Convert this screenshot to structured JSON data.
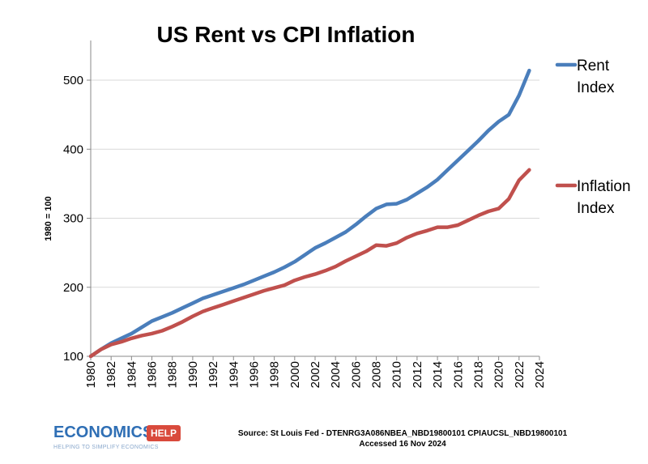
{
  "chart_data": {
    "type": "line",
    "title": "US Rent vs CPI Inflation",
    "ylabel": "1980 = 100",
    "xlabel": "",
    "xlim": [
      1980,
      2024
    ],
    "ylim": [
      100,
      550
    ],
    "yticks": [
      100,
      200,
      300,
      400,
      500
    ],
    "xticks": [
      "1980",
      "1982",
      "1984",
      "1986",
      "1988",
      "1990",
      "1992",
      "1994",
      "1996",
      "1998",
      "2000",
      "2002",
      "2004",
      "2006",
      "2008",
      "2010",
      "2012",
      "2014",
      "2016",
      "2018",
      "2020",
      "2022",
      "2024"
    ],
    "grid": true,
    "legend_position": "right",
    "series": [
      {
        "name": "Rent Index",
        "legend_lines": [
          "Rent",
          "Index"
        ],
        "color": "#4a7ebb",
        "x": [
          1980,
          1981,
          1982,
          1983,
          1984,
          1985,
          1986,
          1987,
          1988,
          1989,
          1990,
          1991,
          1992,
          1993,
          1994,
          1995,
          1996,
          1997,
          1998,
          1999,
          2000,
          2001,
          2002,
          2003,
          2004,
          2005,
          2006,
          2007,
          2008,
          2009,
          2010,
          2011,
          2012,
          2013,
          2014,
          2015,
          2016,
          2017,
          2018,
          2019,
          2020,
          2021,
          2022,
          2023
        ],
        "values": [
          100,
          110,
          119,
          126,
          133,
          142,
          151,
          157,
          163,
          170,
          177,
          184,
          189,
          194,
          199,
          204,
          210,
          216,
          222,
          229,
          237,
          247,
          257,
          264,
          272,
          280,
          291,
          303,
          314,
          320,
          321,
          327,
          336,
          345,
          356,
          370,
          384,
          398,
          412,
          427,
          440,
          450,
          478,
          514
        ]
      },
      {
        "name": "Inflation Index",
        "legend_lines": [
          "Inflation",
          "Index"
        ],
        "color": "#c0504d",
        "x": [
          1980,
          1981,
          1982,
          1983,
          1984,
          1985,
          1986,
          1987,
          1988,
          1989,
          1990,
          1991,
          1992,
          1993,
          1994,
          1995,
          1996,
          1997,
          1998,
          1999,
          2000,
          2001,
          2002,
          2003,
          2004,
          2005,
          2006,
          2007,
          2008,
          2009,
          2010,
          2011,
          2012,
          2013,
          2014,
          2015,
          2016,
          2017,
          2018,
          2019,
          2020,
          2021,
          2022,
          2023
        ],
        "values": [
          100,
          110,
          117,
          121,
          126,
          130,
          133,
          137,
          143,
          150,
          158,
          165,
          170,
          175,
          180,
          185,
          190,
          195,
          199,
          203,
          210,
          215,
          219,
          224,
          230,
          238,
          245,
          252,
          261,
          260,
          264,
          272,
          278,
          282,
          287,
          287,
          290,
          297,
          304,
          310,
          314,
          328,
          355,
          370
        ]
      }
    ]
  },
  "footer": {
    "logo_main": "ECONOMICS",
    "logo_help": "HELP",
    "logo_tagline": "HELPING TO SIMPLIFY ECONOMICS",
    "source_line1": "Source: St Louis Fed - DTENRG3A086NBEA_NBD19800101 CPIAUCSL_NBD19800101",
    "source_line2": "Accessed 16 Nov 2024"
  }
}
